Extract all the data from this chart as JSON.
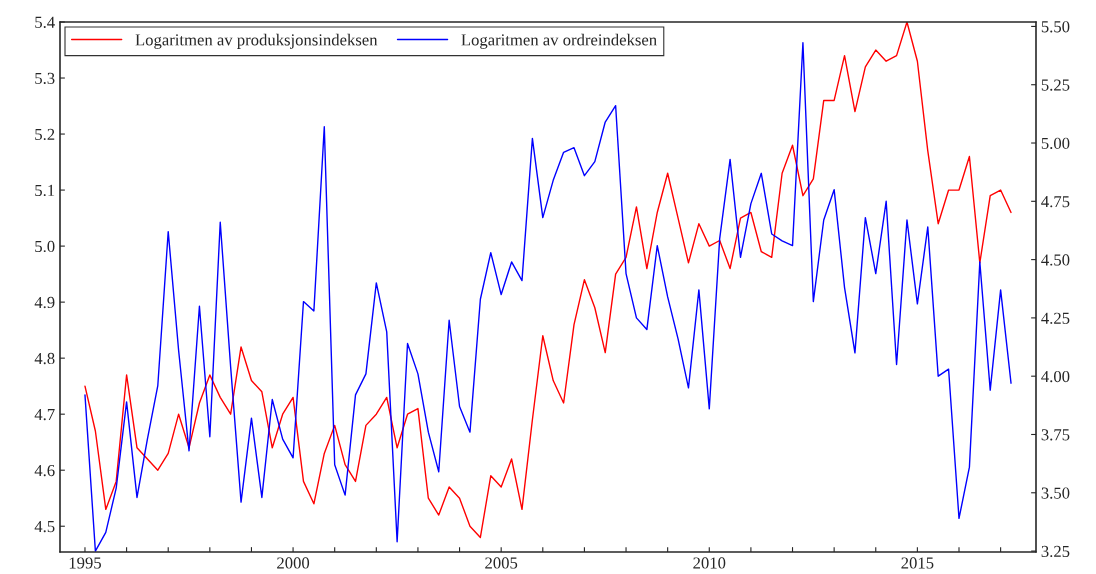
{
  "chart_data": {
    "type": "line",
    "x": [
      1995,
      1995.25,
      1995.5,
      1995.75,
      1996,
      1996.25,
      1996.5,
      1996.75,
      1997,
      1997.25,
      1997.5,
      1997.75,
      1998,
      1998.25,
      1998.5,
      1998.75,
      1999,
      1999.25,
      1999.5,
      1999.75,
      2000,
      2000.25,
      2000.5,
      2000.75,
      2001,
      2001.25,
      2001.5,
      2001.75,
      2002,
      2002.25,
      2002.5,
      2002.75,
      2003,
      2003.25,
      2003.5,
      2003.75,
      2004,
      2004.25,
      2004.5,
      2004.75,
      2005,
      2005.25,
      2005.5,
      2005.75,
      2006,
      2006.25,
      2006.5,
      2006.75,
      2007,
      2007.25,
      2007.5,
      2007.75,
      2008,
      2008.25,
      2008.5,
      2008.75,
      2009,
      2009.25,
      2009.5,
      2009.75,
      2010,
      2010.25,
      2010.5,
      2010.75,
      2011,
      2011.25,
      2011.5,
      2011.75,
      2012,
      2012.25,
      2012.5,
      2012.75,
      2013,
      2013.25,
      2013.5,
      2013.75,
      2014,
      2014.25,
      2014.5,
      2014.75,
      2015,
      2015.25,
      2015.5,
      2015.75,
      2016,
      2016.25,
      2016.5,
      2016.75,
      2017,
      2017.25
    ],
    "series": [
      {
        "name": "Logaritmen av produksjonsindeksen",
        "color": "#ff0000",
        "values": [
          4.75,
          4.67,
          4.53,
          4.58,
          4.77,
          4.64,
          4.62,
          4.6,
          4.63,
          4.7,
          4.64,
          4.72,
          4.77,
          4.73,
          4.7,
          4.82,
          4.76,
          4.74,
          4.64,
          4.7,
          4.73,
          4.58,
          4.54,
          4.63,
          4.68,
          4.61,
          4.58,
          4.68,
          4.7,
          4.73,
          4.64,
          4.7,
          4.71,
          4.55,
          4.52,
          4.57,
          4.55,
          4.5,
          4.48,
          4.59,
          4.57,
          4.62,
          4.53,
          4.69,
          4.84,
          4.76,
          4.72,
          4.86,
          4.94,
          4.89,
          4.81,
          4.95,
          4.98,
          5.07,
          4.96,
          5.06,
          5.13,
          5.05,
          4.97,
          5.04,
          5.0,
          5.01,
          4.96,
          5.05,
          5.06,
          4.99,
          4.98,
          5.13,
          5.18,
          5.09,
          5.12,
          5.26,
          5.26,
          5.34,
          5.24,
          5.32,
          5.35,
          5.33,
          5.34,
          5.4,
          5.33,
          5.17,
          5.04,
          5.1,
          5.1,
          5.16,
          4.97,
          5.09,
          5.1,
          5.06
        ]
      },
      {
        "name": "Logaritmen av ordreindeksen",
        "color": "#0000ff",
        "axis": "y2",
        "values": [
          3.92,
          3.25,
          3.33,
          3.52,
          3.89,
          3.48,
          3.73,
          3.96,
          4.62,
          4.11,
          3.68,
          4.3,
          3.74,
          4.66,
          4.04,
          3.46,
          3.82,
          3.48,
          3.9,
          3.73,
          3.65,
          4.32,
          4.28,
          5.07,
          3.62,
          3.49,
          3.92,
          4.01,
          4.4,
          4.19,
          3.29,
          4.14,
          4.01,
          3.76,
          3.59,
          4.24,
          3.87,
          3.76,
          4.33,
          4.53,
          4.35,
          4.49,
          4.41,
          5.02,
          4.68,
          4.84,
          4.96,
          4.98,
          4.86,
          4.92,
          5.09,
          5.16,
          4.44,
          4.25,
          4.2,
          4.56,
          4.34,
          4.16,
          3.95,
          4.37,
          3.86,
          4.59,
          4.93,
          4.51,
          4.74,
          4.87,
          4.61,
          4.58,
          4.56,
          5.43,
          4.32,
          4.67,
          4.8,
          4.38,
          4.1,
          4.68,
          4.44,
          4.75,
          4.05,
          4.67,
          4.31,
          4.64,
          4.0,
          4.03,
          3.39,
          3.61,
          4.49,
          3.94,
          4.37,
          3.97
        ]
      }
    ],
    "xlim": [
      1994.4,
      2017.85
    ],
    "xticks": [
      1995,
      {
        "value": 1996,
        "label": null
      },
      {
        "value": 1997,
        "label": null
      },
      {
        "value": 1998,
        "label": null
      },
      {
        "value": 1999,
        "label": null
      },
      2000,
      {
        "value": 2001,
        "label": null
      },
      {
        "value": 2002,
        "label": null
      },
      {
        "value": 2003,
        "label": null
      },
      {
        "value": 2004,
        "label": null
      },
      2005,
      {
        "value": 2006,
        "label": null
      },
      {
        "value": 2007,
        "label": null
      },
      {
        "value": 2008,
        "label": null
      },
      {
        "value": 2009,
        "label": null
      },
      2010,
      {
        "value": 2011,
        "label": null
      },
      {
        "value": 2012,
        "label": null
      },
      {
        "value": 2013,
        "label": null
      },
      {
        "value": 2014,
        "label": null
      },
      2015,
      {
        "value": 2016,
        "label": null
      },
      {
        "value": 2017,
        "label": null
      }
    ],
    "ylim": [
      4.454,
      5.4
    ],
    "yticks": [
      4.5,
      4.6,
      4.7,
      4.8,
      4.9,
      {
        "value": 5.0,
        "label": "5.0"
      },
      5.1,
      5.2,
      5.3,
      5.4
    ],
    "y2lim": [
      3.246,
      5.519
    ],
    "y2ticks": [
      {
        "value": 3.25,
        "label": "3.25"
      },
      {
        "value": 3.5,
        "label": "3.50"
      },
      {
        "value": 3.75,
        "label": "3.75"
      },
      {
        "value": 4.0,
        "label": "4.00"
      },
      {
        "value": 4.25,
        "label": "4.25"
      },
      {
        "value": 4.5,
        "label": "4.50"
      },
      {
        "value": 4.75,
        "label": "4.75"
      },
      {
        "value": 5.0,
        "label": "5.00"
      },
      {
        "value": 5.25,
        "label": "5.25"
      },
      {
        "value": 5.5,
        "label": "5.50"
      }
    ],
    "legend": "top left",
    "grid": false
  }
}
